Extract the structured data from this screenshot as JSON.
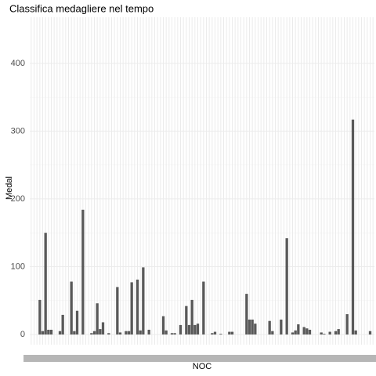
{
  "chart_data": {
    "type": "bar",
    "title": "Classifica medagliere nel tempo",
    "x_label": "NOC",
    "y_label": "Medal",
    "categories": [
      null,
      null,
      null,
      null,
      null,
      null,
      null,
      null,
      null,
      null,
      null,
      null,
      null,
      null,
      null,
      null,
      null,
      null,
      null,
      null,
      null,
      null,
      null,
      null,
      null,
      null,
      null,
      null,
      null,
      null,
      null,
      null,
      null,
      null,
      null,
      null,
      null,
      null,
      null,
      null,
      null,
      null,
      null,
      null,
      null,
      null,
      null,
      null,
      null,
      null,
      null,
      null,
      null,
      null,
      null,
      null,
      null,
      null,
      null,
      null,
      null,
      null,
      null,
      null,
      null,
      null,
      null,
      null,
      null,
      null,
      null,
      null,
      null,
      null,
      null,
      null,
      null,
      null,
      null,
      null,
      null,
      null,
      null,
      null,
      null,
      null,
      null,
      null,
      null,
      null,
      null,
      null,
      null,
      null,
      null,
      null,
      null,
      null,
      null,
      null,
      null,
      null,
      null,
      null,
      null,
      null,
      null,
      null,
      null,
      null,
      null,
      null,
      null,
      null,
      null,
      null,
      null,
      null,
      null,
      null
    ],
    "values": [
      0,
      0,
      0,
      51,
      5,
      150,
      7,
      7,
      0,
      0,
      5,
      29,
      0,
      0,
      78,
      5,
      35,
      0,
      184,
      0,
      0,
      2,
      5,
      46,
      8,
      18,
      0,
      2,
      0,
      0,
      70,
      3,
      0,
      5,
      5,
      77,
      0,
      81,
      6,
      99,
      0,
      7,
      0,
      0,
      0,
      0,
      27,
      6,
      0,
      2,
      2,
      0,
      14,
      0,
      42,
      14,
      51,
      14,
      16,
      0,
      78,
      0,
      0,
      2,
      4,
      0,
      1,
      0,
      0,
      4,
      4,
      0,
      0,
      0,
      0,
      60,
      22,
      22,
      16,
      0,
      0,
      0,
      0,
      20,
      5,
      0,
      0,
      22,
      0,
      142,
      0,
      3,
      6,
      15,
      0,
      11,
      9,
      7,
      0,
      0,
      0,
      3,
      1,
      0,
      4,
      0,
      5,
      8,
      0,
      0,
      30,
      0,
      317,
      6,
      0,
      0,
      0,
      0,
      5,
      0
    ],
    "color": "#595959",
    "ylim": [
      -15,
      468
    ],
    "yticks": [
      0,
      100,
      200,
      300,
      400
    ],
    "grid": true
  }
}
